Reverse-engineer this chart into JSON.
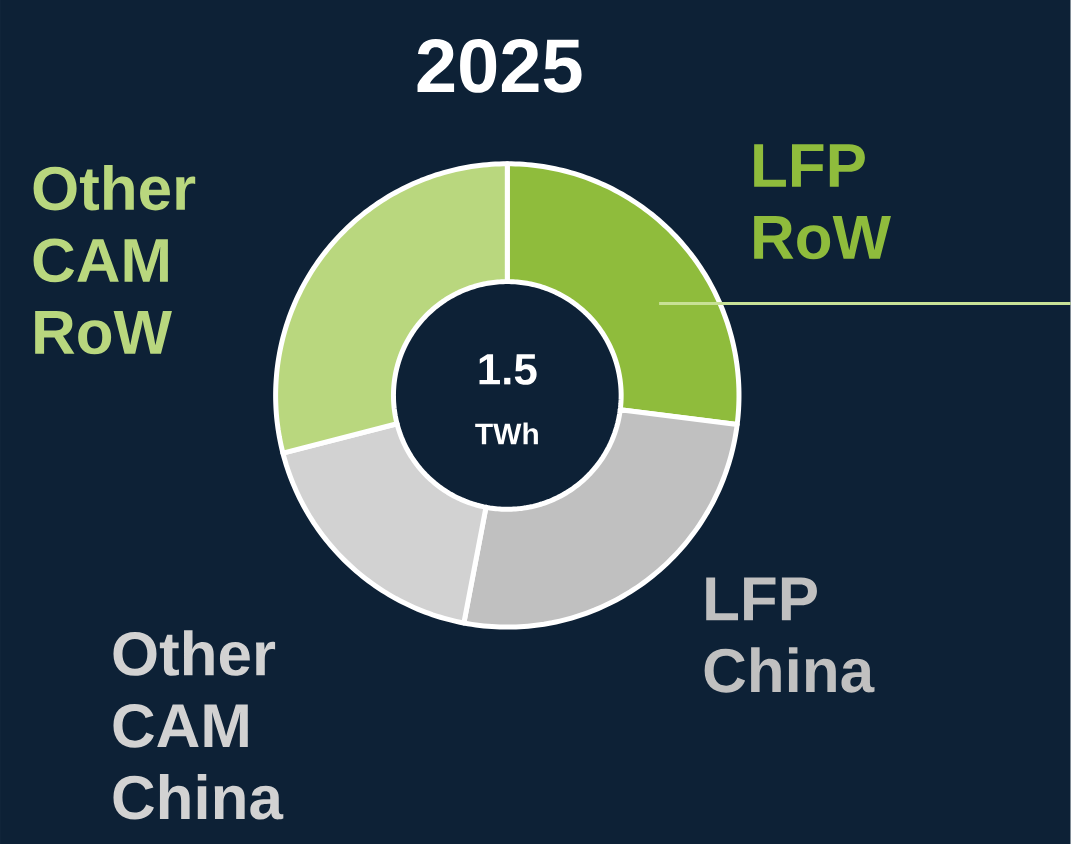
{
  "chart_data": {
    "type": "donut",
    "title": "2025",
    "categories": [
      "LFP RoW",
      "LFP China",
      "Other CAM China",
      "Other CAM RoW"
    ],
    "values": [
      27,
      26,
      18,
      29
    ],
    "colors": [
      "#8fbc3c",
      "#c0c0c0",
      "#d2d2d2",
      "#b9d77e"
    ],
    "annotations": [
      "1.5",
      "TWh"
    ]
  }
}
